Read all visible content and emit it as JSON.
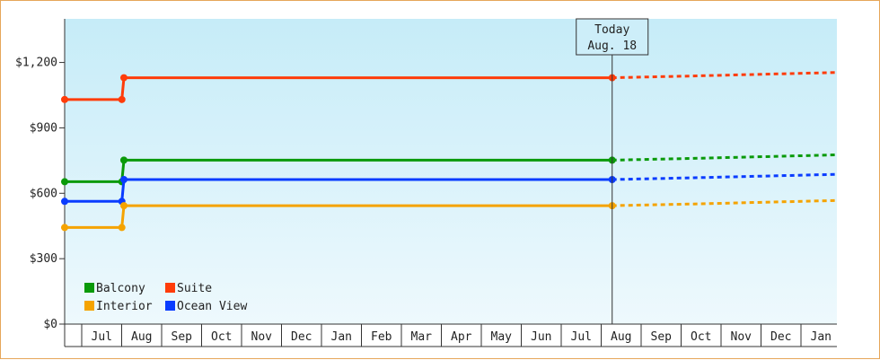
{
  "chart_data": {
    "type": "line",
    "title": "",
    "xlabel": "",
    "ylabel": "",
    "ylim": [
      0,
      1400
    ],
    "yticks": [
      0,
      300,
      600,
      900,
      1200
    ],
    "ytick_labels": [
      "$0",
      "$300",
      "$600",
      "$900",
      "$1,200"
    ],
    "month_labels": [
      "Jul",
      "Aug",
      "Sep",
      "Oct",
      "Nov",
      "Dec",
      "Jan",
      "Feb",
      "Mar",
      "Apr",
      "May",
      "Jun",
      "Jul",
      "Aug",
      "Sep",
      "Oct",
      "Nov",
      "Dec",
      "Jan"
    ],
    "x_range": [
      -0.4,
      18.5
    ],
    "today_x": 13.0,
    "annotation": {
      "line1": "Today",
      "line2": "Aug. 18"
    },
    "grid": false,
    "legend_position": "bottom-left",
    "series": [
      {
        "name": "Suite",
        "color": "#ff3c0a",
        "history": [
          [
            -0.4,
            1030
          ],
          [
            1.0,
            1030
          ],
          [
            1.05,
            1130
          ],
          [
            13.0,
            1130
          ]
        ],
        "forecast": [
          [
            13.0,
            1130
          ],
          [
            15.0,
            1138
          ],
          [
            18.5,
            1154
          ]
        ]
      },
      {
        "name": "Balcony",
        "color": "#0a9a0a",
        "history": [
          [
            -0.4,
            653
          ],
          [
            1.0,
            653
          ],
          [
            1.05,
            752
          ],
          [
            13.0,
            752
          ]
        ],
        "forecast": [
          [
            13.0,
            752
          ],
          [
            15.0,
            760
          ],
          [
            18.5,
            776
          ]
        ]
      },
      {
        "name": "Ocean View",
        "color": "#0a3cff",
        "history": [
          [
            -0.4,
            563
          ],
          [
            1.0,
            563
          ],
          [
            1.05,
            663
          ],
          [
            13.0,
            663
          ]
        ],
        "forecast": [
          [
            13.0,
            663
          ],
          [
            15.0,
            671
          ],
          [
            18.5,
            687
          ]
        ]
      },
      {
        "name": "Interior",
        "color": "#f5a300",
        "history": [
          [
            -0.4,
            443
          ],
          [
            1.0,
            443
          ],
          [
            1.05,
            543
          ],
          [
            13.0,
            543
          ]
        ],
        "forecast": [
          [
            13.0,
            543
          ],
          [
            15.0,
            551
          ],
          [
            18.5,
            567
          ]
        ]
      }
    ],
    "legend": [
      {
        "name": "Balcony",
        "color": "#0a9a0a"
      },
      {
        "name": "Suite",
        "color": "#ff3c0a"
      },
      {
        "name": "Interior",
        "color": "#f5a300"
      },
      {
        "name": "Ocean View",
        "color": "#0a3cff"
      }
    ]
  }
}
